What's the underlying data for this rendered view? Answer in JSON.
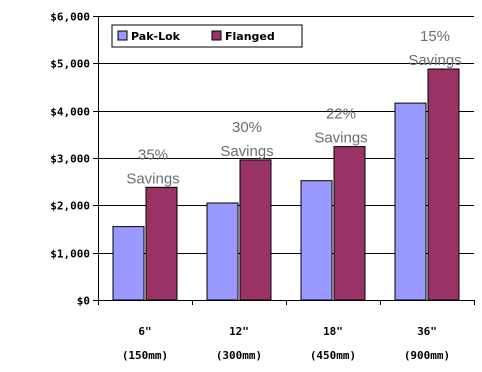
{
  "chart_data": {
    "type": "bar",
    "categories": [
      [
        "6\"",
        "(150mm)"
      ],
      [
        "12\"",
        "(300mm)"
      ],
      [
        "18\"",
        "(450mm)"
      ],
      [
        "36\"",
        "(900mm)"
      ]
    ],
    "series": [
      {
        "name": "Pak-Lok",
        "values": [
          1550,
          2050,
          2520,
          4160
        ],
        "color": "#9999ff"
      },
      {
        "name": "Flanged",
        "values": [
          2380,
          2960,
          3240,
          4880
        ],
        "color": "#993366"
      }
    ],
    "ylim": [
      0,
      6000
    ],
    "yticks": [
      {
        "value": 0,
        "label": "$0"
      },
      {
        "value": 1000,
        "label": "$1,000"
      },
      {
        "value": 2000,
        "label": "$2,000"
      },
      {
        "value": 3000,
        "label": "$3,000"
      },
      {
        "value": 4000,
        "label": "$4,000"
      },
      {
        "value": 5000,
        "label": "$5,000"
      },
      {
        "value": 6000,
        "label": "$6,000"
      }
    ],
    "annotations": [
      {
        "category": 0,
        "lines": [
          "35%",
          "Savings"
        ]
      },
      {
        "category": 1,
        "lines": [
          "30%",
          "Savings"
        ]
      },
      {
        "category": 2,
        "lines": [
          "22%",
          "Savings"
        ]
      },
      {
        "category": 3,
        "lines": [
          "15%",
          "Savings"
        ]
      }
    ],
    "legend_position": "top-left",
    "grid": true,
    "title": "",
    "xlabel": "",
    "ylabel": ""
  }
}
